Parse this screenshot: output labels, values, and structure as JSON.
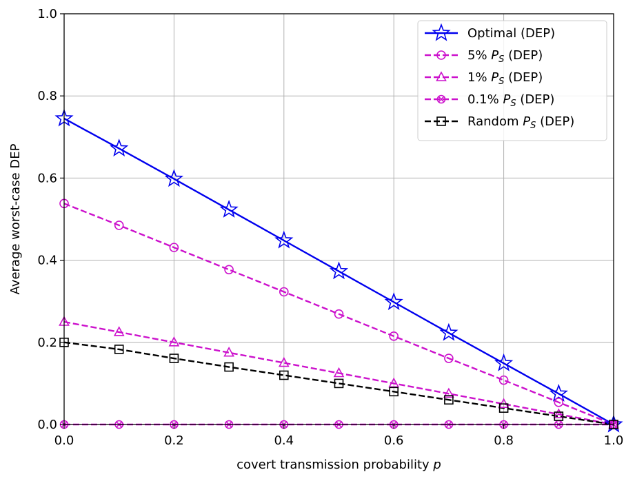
{
  "chart_data": {
    "type": "line",
    "title": "",
    "xlabel": "covert transmission probability",
    "xlabel_var": "p",
    "ylabel": "Average worst-case DEP",
    "xlim": [
      0.0,
      1.0
    ],
    "ylim": [
      0.0,
      1.0
    ],
    "grid": true,
    "legend_position": "top-right",
    "x_ticks": [
      "0.0",
      "0.2",
      "0.4",
      "0.6",
      "0.8",
      "1.0"
    ],
    "y_ticks": [
      "0.0",
      "0.2",
      "0.4",
      "0.6",
      "0.8",
      "1.0"
    ],
    "x_tick_values": [
      0.0,
      0.2,
      0.4,
      0.6,
      0.8,
      1.0
    ],
    "y_tick_values": [
      0.0,
      0.2,
      0.4,
      0.6,
      0.8,
      1.0
    ],
    "x": [
      0.0,
      0.1,
      0.2,
      0.3,
      0.4,
      0.5,
      0.6,
      0.7,
      0.8,
      0.9,
      1.0
    ],
    "series": [
      {
        "name": "Optimal (DEP)",
        "legend_prefix": "Optimal",
        "legend_ps": false,
        "legend_suffix": " (DEP)",
        "color": "#0000ee",
        "marker": "star",
        "dashed": false,
        "values": [
          0.745,
          0.672,
          0.598,
          0.523,
          0.448,
          0.373,
          0.298,
          0.223,
          0.149,
          0.075,
          0.0
        ]
      },
      {
        "name": "5% P_S (DEP)",
        "legend_prefix": "5%",
        "legend_ps": true,
        "legend_suffix": " (DEP)",
        "color": "#cc11cc",
        "marker": "circle",
        "dashed": true,
        "values": [
          0.538,
          0.485,
          0.431,
          0.377,
          0.323,
          0.269,
          0.215,
          0.161,
          0.108,
          0.054,
          0.0
        ]
      },
      {
        "name": "1% P_S (DEP)",
        "legend_prefix": "1%",
        "legend_ps": true,
        "legend_suffix": " (DEP)",
        "color": "#cc11cc",
        "marker": "triangle",
        "dashed": true,
        "values": [
          0.25,
          0.225,
          0.2,
          0.175,
          0.15,
          0.125,
          0.1,
          0.075,
          0.05,
          0.025,
          0.0
        ]
      },
      {
        "name": "0.1% P_S (DEP)",
        "legend_prefix": "0.1%",
        "legend_ps": true,
        "legend_suffix": " (DEP)",
        "color": "#cc11cc",
        "marker": "xcircle",
        "dashed": true,
        "values": [
          0.0,
          0.0,
          0.0,
          0.0,
          0.0,
          0.0,
          0.0,
          0.0,
          0.0,
          0.0,
          0.0
        ]
      },
      {
        "name": "Random P_S (DEP)",
        "legend_prefix": "Random",
        "legend_ps": true,
        "legend_suffix": " (DEP)",
        "color": "#000000",
        "marker": "square",
        "dashed": true,
        "values": [
          0.2,
          0.183,
          0.161,
          0.14,
          0.12,
          0.1,
          0.08,
          0.06,
          0.04,
          0.02,
          0.0
        ]
      }
    ]
  }
}
